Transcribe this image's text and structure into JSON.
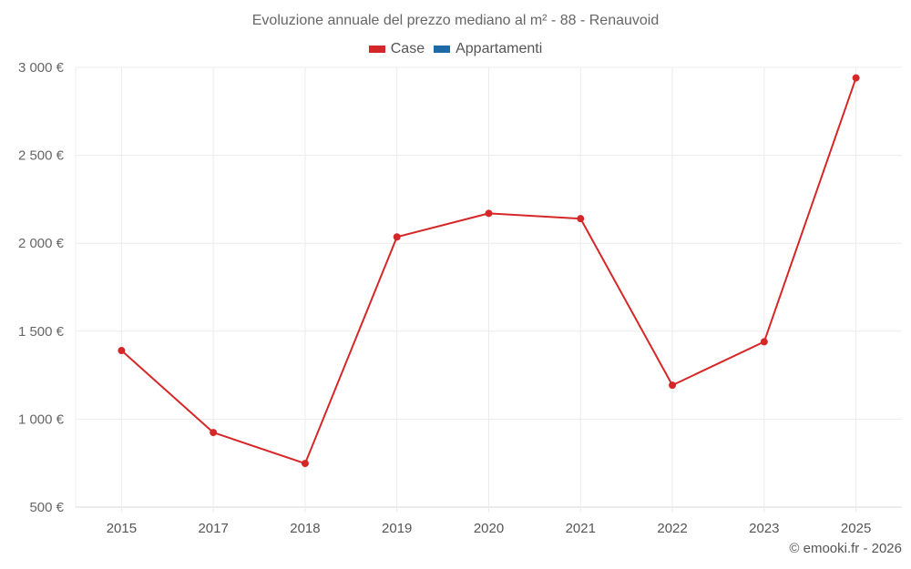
{
  "header": {
    "title": "Evoluzione annuale del prezzo mediano al m² - 88 - Renauvoid"
  },
  "legend": [
    {
      "label": "Case",
      "color": "#d62728"
    },
    {
      "label": "Appartamenti",
      "color": "#1f6aa5"
    }
  ],
  "footer": {
    "credit": "© emooki.fr - 2026"
  },
  "chart_data": {
    "type": "line",
    "title": "Evoluzione annuale del prezzo mediano al m² - 88 - Renauvoid",
    "xlabel": "",
    "ylabel": "",
    "categories": [
      "2015",
      "2017",
      "2018",
      "2019",
      "2020",
      "2021",
      "2022",
      "2023",
      "2025"
    ],
    "series": [
      {
        "name": "Case",
        "color": "#d62728",
        "values": [
          1390,
          924,
          748,
          2036,
          2170,
          2140,
          1193,
          1440,
          2940
        ]
      },
      {
        "name": "Appartamenti",
        "color": "#1f6aa5",
        "values": []
      }
    ],
    "yticks": [
      500,
      1000,
      1500,
      2000,
      2500,
      3000
    ],
    "ytick_labels": [
      "500 €",
      "1 000 €",
      "1 500 €",
      "2 000 €",
      "2 500 €",
      "3 000 €"
    ],
    "ylim": [
      500,
      3000
    ],
    "grid": true,
    "legend_position": "top"
  }
}
